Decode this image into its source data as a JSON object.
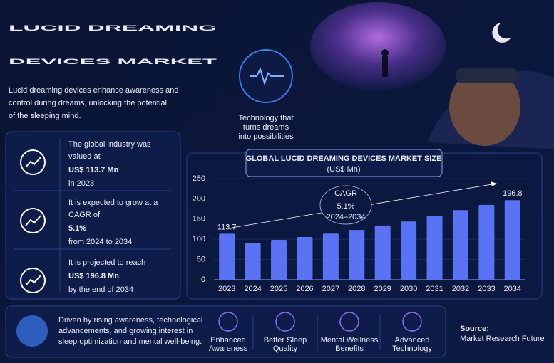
{
  "header": {
    "title_line1": "LUCID DREAMING",
    "title_line2": "DEVICES MARKET",
    "description": [
      "Lucid dreaming devices enhance awareness and",
      "control during dreams, unlocking the potential",
      "of the sleeping mind."
    ]
  },
  "illustration": {
    "caption": [
      "Technology that",
      "turns dreams",
      "into possibilities"
    ]
  },
  "stats": [
    {
      "lines_before": [
        "The global industry was",
        "valued at"
      ],
      "highlight": "US$ 113.7 Mn",
      "lines_after": [
        "in 2023"
      ]
    },
    {
      "lines_before": [
        "It is expected to grow at a",
        "CAGR of"
      ],
      "highlight": "5.1%",
      "lines_after": [
        "from 2024 to 2034"
      ]
    },
    {
      "lines_before": [
        "It is projected to reach"
      ],
      "highlight": "US$ 196.8 Mn",
      "lines_after": [
        "by the end of 2034"
      ]
    }
  ],
  "chart_data": {
    "type": "bar",
    "title": "GLOBAL LUCID DREAMING DEVICES MARKET SIZE",
    "subtitle": "(US$ Mn)",
    "categories": [
      "2023",
      "2024",
      "2025",
      "2026",
      "2027",
      "2028",
      "2029",
      "2030",
      "2031",
      "2032",
      "2033",
      "2034"
    ],
    "values": [
      113.7,
      91.5,
      98.6,
      105.6,
      114,
      123,
      134,
      144,
      158,
      172,
      185,
      196.8
    ],
    "value_labels": [
      "113.7",
      null,
      null,
      null,
      null,
      null,
      null,
      null,
      null,
      null,
      null,
      "196.8"
    ],
    "color": "#5a72f4",
    "ylim": [
      0,
      250
    ],
    "yticks": [
      0,
      50,
      100,
      150,
      200,
      250
    ],
    "grid": true,
    "annotation": {
      "label": "CAGR",
      "value": "5.1%",
      "period": "2024–2034"
    }
  },
  "footer": {
    "text": [
      "Driven by rising awareness, technological",
      "advancements, and growing interest in",
      "sleep optimization and mental well-being."
    ],
    "features": [
      {
        "label": [
          "Enhanced",
          "Awareness"
        ]
      },
      {
        "label": [
          "Better Sleep",
          "Quality"
        ]
      },
      {
        "label": [
          "Mental Wellness",
          "Benefits"
        ]
      },
      {
        "label": [
          "Advanced",
          "Technology"
        ]
      }
    ],
    "source_label": "Source:",
    "source": "Market Research Future"
  }
}
